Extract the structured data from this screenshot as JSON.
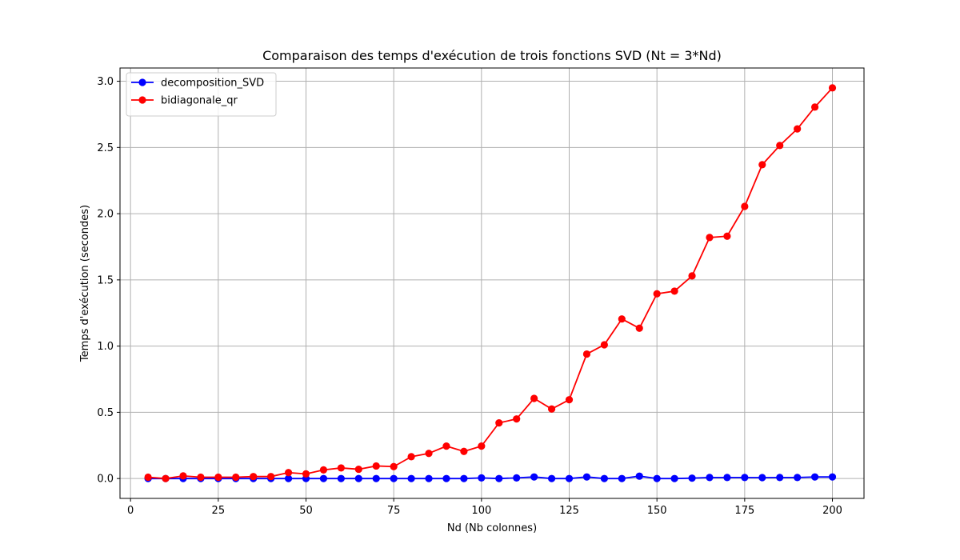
{
  "chart_data": {
    "type": "line",
    "title": "Comparaison des temps d'exécution de trois fonctions SVD (Nt = 3*Nd)",
    "xlabel": "Nd (Nb colonnes)",
    "ylabel": "Temps d'exécution (secondes)",
    "xlim": [
      -3,
      209
    ],
    "ylim": [
      -0.15,
      3.1
    ],
    "xticks": [
      0,
      25,
      50,
      75,
      100,
      125,
      150,
      175,
      200
    ],
    "xtick_labels": [
      "0",
      "25",
      "50",
      "75",
      "100",
      "125",
      "150",
      "175",
      "200"
    ],
    "yticks": [
      0.0,
      0.5,
      1.0,
      1.5,
      2.0,
      2.5,
      3.0
    ],
    "ytick_labels": [
      "0.0",
      "0.5",
      "1.0",
      "1.5",
      "2.0",
      "2.5",
      "3.0"
    ],
    "grid": true,
    "legend_position": "top-left",
    "x": [
      5,
      10,
      15,
      20,
      25,
      30,
      35,
      40,
      45,
      50,
      55,
      60,
      65,
      70,
      75,
      80,
      85,
      90,
      95,
      100,
      105,
      110,
      115,
      120,
      125,
      130,
      135,
      140,
      145,
      150,
      155,
      160,
      165,
      170,
      175,
      180,
      185,
      190,
      195,
      200
    ],
    "series": [
      {
        "name": "decomposition_SVD",
        "color": "#0000ff",
        "values": [
          0.0,
          0.0,
          0.0,
          0.0,
          0.0,
          0.0,
          0.0,
          0.0,
          0.0,
          0.0,
          0.0,
          0.0,
          0.0,
          0.0,
          0.0,
          0.0,
          0.0,
          0.0,
          0.0,
          0.005,
          0.0,
          0.005,
          0.012,
          0.0,
          0.0,
          0.012,
          0.0,
          0.0,
          0.018,
          0.0,
          0.0,
          0.003,
          0.008,
          0.008,
          0.008,
          0.007,
          0.008,
          0.008,
          0.012,
          0.012
        ]
      },
      {
        "name": "bidiagonale_qr",
        "color": "#ff0000",
        "values": [
          0.01,
          0.0,
          0.02,
          0.01,
          0.01,
          0.01,
          0.015,
          0.015,
          0.045,
          0.035,
          0.065,
          0.08,
          0.07,
          0.095,
          0.09,
          0.165,
          0.19,
          0.245,
          0.205,
          0.245,
          0.42,
          0.45,
          0.605,
          0.525,
          0.595,
          0.94,
          1.01,
          1.205,
          1.135,
          1.395,
          1.415,
          1.53,
          1.82,
          1.83,
          2.055,
          2.37,
          2.515,
          2.64,
          2.805,
          2.95
        ]
      }
    ]
  }
}
